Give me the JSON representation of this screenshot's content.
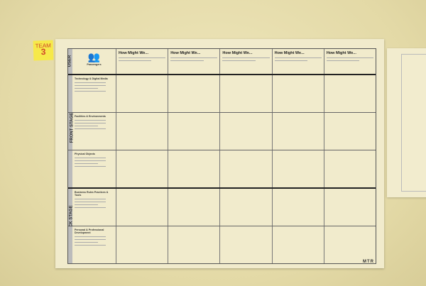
{
  "note": {
    "line1": "TEAM",
    "line2": "3"
  },
  "poster": {
    "user_label": "USER",
    "front_stage_label": "FRONT STAGE",
    "back_stage_label": "BACK STAGE",
    "persona": "Passengers",
    "columns": [
      "How Might We...",
      "How Might We...",
      "How Might We...",
      "How Might We...",
      "How Might We..."
    ],
    "rows": [
      {
        "label": "Technology & Digital Media",
        "stage": "front"
      },
      {
        "label": "Facilities & Environments",
        "stage": "front"
      },
      {
        "label": "Physical Objects",
        "stage": "front"
      },
      {
        "label": "Business Rules Practices & Tools",
        "stage": "back"
      },
      {
        "label": "Personal & Professional Development",
        "stage": "back"
      }
    ],
    "logo": "MTR"
  }
}
